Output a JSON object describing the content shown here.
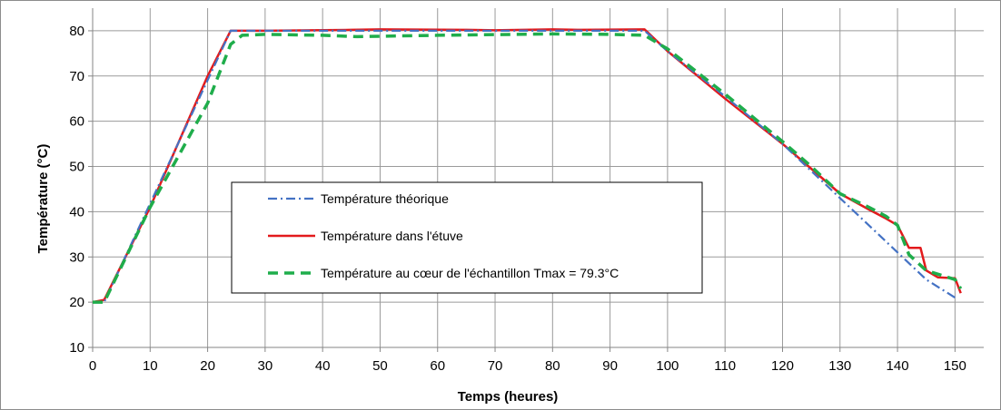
{
  "chart_data": {
    "type": "line",
    "title": "",
    "xlabel": "Temps (heures)",
    "ylabel": "Température  (°C)",
    "xlim": [
      0,
      155
    ],
    "ylim": [
      10,
      85
    ],
    "xticks": [
      0,
      10,
      20,
      30,
      40,
      50,
      60,
      70,
      80,
      90,
      100,
      110,
      120,
      130,
      140,
      150
    ],
    "yticks": [
      10,
      20,
      30,
      40,
      50,
      60,
      70,
      80
    ],
    "grid": true,
    "legend_position": "center-left",
    "series": [
      {
        "name": "Température théorique",
        "color": "#4472c4",
        "dash": "dash-dot",
        "x": [
          0,
          2,
          24,
          96,
          100,
          110,
          120,
          130,
          140,
          145,
          150
        ],
        "y": [
          20,
          20,
          80,
          80,
          75.5,
          65.5,
          55,
          43,
          31,
          25,
          21
        ]
      },
      {
        "name": "Température dans l'étuve",
        "color": "#e31a1c",
        "dash": "solid",
        "x": [
          0,
          2,
          10,
          20,
          24,
          30,
          45,
          50,
          65,
          70,
          80,
          85,
          96,
          100,
          110,
          120,
          125,
          130,
          135,
          138,
          140,
          142,
          144,
          145,
          147,
          150,
          151
        ],
        "y": [
          20,
          20.5,
          41,
          70,
          80,
          80,
          80.2,
          80.3,
          80.2,
          80.1,
          80.3,
          80.2,
          80.3,
          75.5,
          65,
          55,
          49.5,
          44,
          40.5,
          38.5,
          37,
          32,
          32,
          27,
          25.5,
          25.3,
          22
        ]
      },
      {
        "name": "Température au cœur de l'échantillon Tmax = 79.3°C",
        "color": "#1fad4b",
        "dash": "dashed",
        "x": [
          0,
          2,
          10,
          20,
          24,
          26,
          30,
          40,
          46,
          60,
          80,
          90,
          96,
          100,
          110,
          120,
          125,
          130,
          135,
          138,
          140,
          142,
          145,
          150,
          151
        ],
        "y": [
          20,
          20,
          41,
          64,
          77,
          79,
          79.2,
          79,
          78.7,
          79,
          79.3,
          79.2,
          79,
          76,
          66,
          55.5,
          50,
          44,
          41,
          39,
          37,
          30.5,
          27,
          25,
          23
        ]
      }
    ]
  }
}
